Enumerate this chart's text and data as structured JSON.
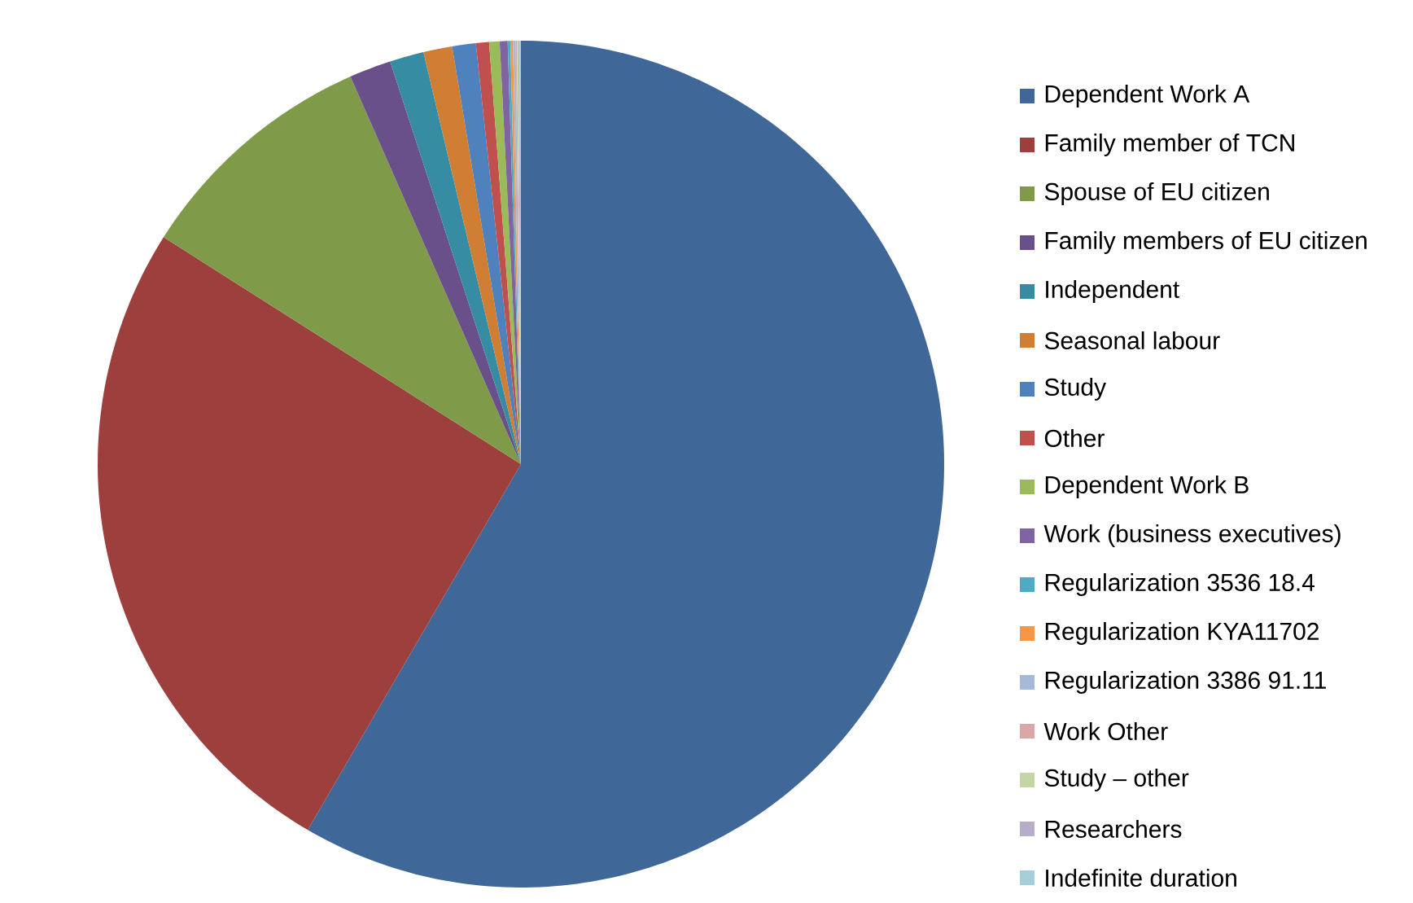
{
  "chart_data": {
    "type": "pie",
    "categories": [
      "Dependent Work A",
      "Family member of TCN",
      "Spouse of EU citizen",
      "Family members of EU citizen",
      "Independent",
      "Seasonal labour",
      "Study",
      "Other",
      "Dependent Work B",
      "Work (business executives)",
      "Regularization 3536 18.4",
      "Regularization KYA11702",
      "Regularization 3386 91.11",
      "Work Other",
      "Study – other",
      "Researchers",
      "Indefinite duration"
    ],
    "values": [
      58.4,
      25.6,
      9.4,
      1.6,
      1.3,
      1.1,
      0.9,
      0.5,
      0.4,
      0.3,
      0.1,
      0.1,
      0.1,
      0.05,
      0.05,
      0.05,
      0.05
    ],
    "colors": [
      "#3f6899",
      "#9c3f3d",
      "#7f9a48",
      "#69508a",
      "#358ca3",
      "#d07e34",
      "#4f81bd",
      "#c0504d",
      "#9bbb59",
      "#8064a2",
      "#4bacc6",
      "#f79646",
      "#a7b9d9",
      "#d9a7a6",
      "#c3d6a5",
      "#b8accb",
      "#a5cdda"
    ],
    "legend": "right"
  }
}
